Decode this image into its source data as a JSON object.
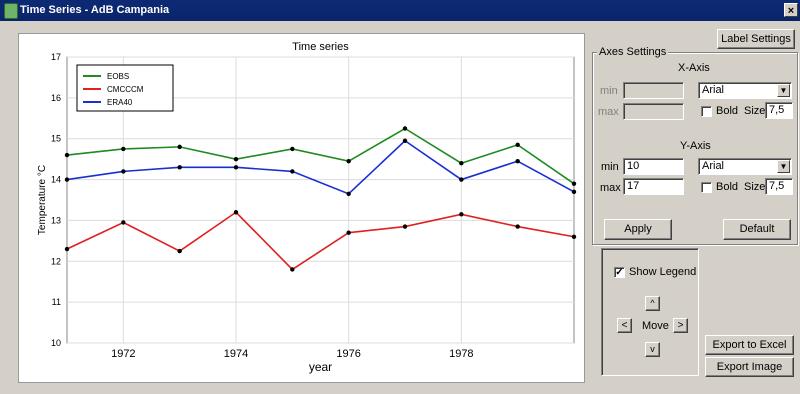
{
  "window": {
    "title": "Time Series - AdB Campania",
    "close_glyph": "×"
  },
  "chart_data": {
    "type": "line",
    "title": "Time series",
    "xlabel": "year",
    "ylabel": "Temperature °C",
    "x": [
      1971,
      1972,
      1973,
      1974,
      1975,
      1976,
      1977,
      1978,
      1979,
      1980
    ],
    "xlim": [
      1971,
      1980
    ],
    "ylim": [
      10,
      17
    ],
    "xticks": [
      "1972",
      "1974",
      "1976",
      "1978"
    ],
    "yticks": [
      "10",
      "11",
      "12",
      "13",
      "14",
      "15",
      "16",
      "17"
    ],
    "grid": true,
    "legend_position": "top-left",
    "series": [
      {
        "name": "EOBS",
        "color": "#1f8a1f",
        "values": [
          14.6,
          14.75,
          14.8,
          14.5,
          14.75,
          14.45,
          15.25,
          14.4,
          14.85,
          13.9
        ]
      },
      {
        "name": "CMCCCM",
        "color": "#e02020",
        "values": [
          12.3,
          12.95,
          12.25,
          13.2,
          11.8,
          12.7,
          12.85,
          13.15,
          12.85,
          12.6
        ]
      },
      {
        "name": "ERA40",
        "color": "#1a2fd0",
        "values": [
          14.0,
          14.2,
          14.3,
          14.3,
          14.2,
          13.65,
          14.95,
          14.0,
          14.45,
          13.7
        ]
      }
    ]
  },
  "label_settings_button": "Label Settings",
  "axes_settings": {
    "group_label": "Axes Settings",
    "x_axis": {
      "heading": "X-Axis",
      "min_label": "min",
      "max_label": "max",
      "min_value": "",
      "max_value": "",
      "font": "Arial",
      "bold_label": "Bold",
      "bold_checked": false,
      "size_label": "Size",
      "size_value": "7,5"
    },
    "y_axis": {
      "heading": "Y-Axis",
      "min_label": "min",
      "max_label": "max",
      "min_value": "10",
      "max_value": "17",
      "font": "Arial",
      "bold_label": "Bold",
      "bold_checked": false,
      "size_label": "Size",
      "size_value": "7,5"
    },
    "apply_button": "Apply",
    "default_button": "Default"
  },
  "legend_panel": {
    "show_legend_label": "Show Legend",
    "show_legend_checked": true,
    "move_label": "Move",
    "up_glyph": "^",
    "down_glyph": "v",
    "left_glyph": "<",
    "right_glyph": ">"
  },
  "export_excel_button": "Export to Excel",
  "export_image_button": "Export Image"
}
